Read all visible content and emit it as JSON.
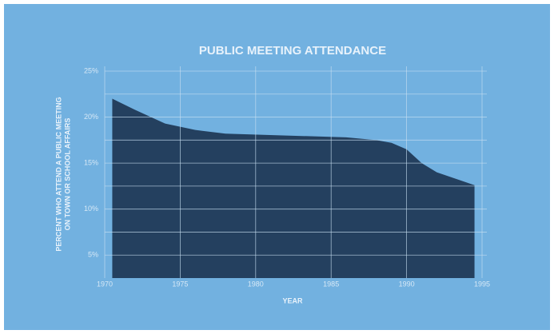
{
  "chart_data": {
    "type": "area",
    "title": "PUBLIC MEETING ATTENDANCE",
    "y_label": [
      "PERCENT WHO ATTEND A PUBLIC MEETING",
      "ON TOWN OR SCHOOL AFFAIRS"
    ],
    "x_label": "YEAR",
    "x": [
      1970.5,
      1972,
      1974,
      1976,
      1978,
      1982,
      1986,
      1988,
      1989,
      1990,
      1991,
      1992,
      1994.5
    ],
    "values": [
      22,
      20.8,
      19.3,
      18.6,
      18.2,
      18,
      17.8,
      17.5,
      17.2,
      16.5,
      15,
      14,
      12.6
    ],
    "color": "#1d3654",
    "xlim": [
      1970,
      1995
    ],
    "ylim": [
      2.5,
      25
    ],
    "xticks": [
      1970,
      1975,
      1980,
      1985,
      1990,
      1995
    ],
    "yticks": [
      {
        "value": 5,
        "label": "5%"
      },
      {
        "value": 10,
        "label": "10%"
      },
      {
        "value": 15,
        "label": "15%"
      },
      {
        "value": 20,
        "label": "20%"
      },
      {
        "value": 25,
        "label": "25%"
      }
    ],
    "minor_yticks": [
      7.5,
      12.5,
      17.5,
      22.5
    ],
    "grid": true
  }
}
